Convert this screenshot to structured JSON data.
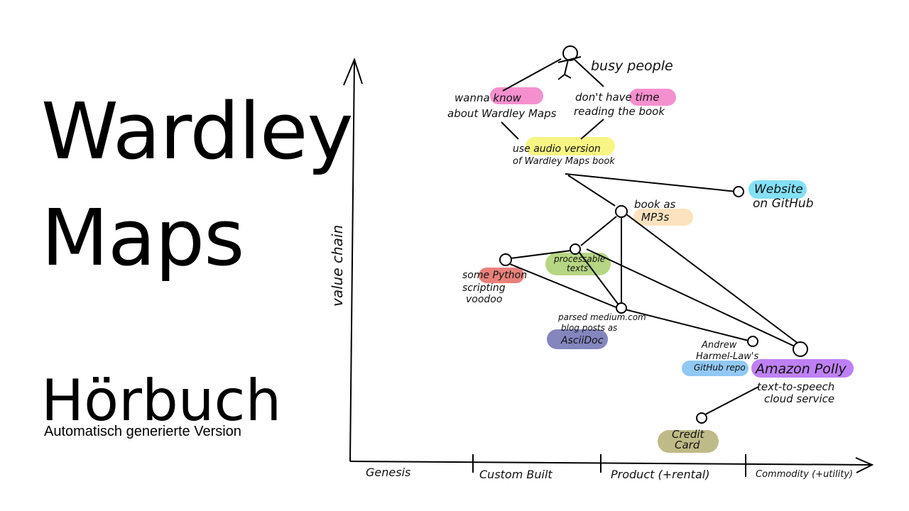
{
  "title": {
    "line1": "Wardley",
    "line2": "Maps"
  },
  "subtitle": "Hörbuch",
  "caption": "Automatisch generierte Version",
  "axes": {
    "y_label": "value chain",
    "x_stages": [
      "Genesis",
      "Custom Built",
      "Product (+rental)",
      "Commodity (+utility)"
    ]
  },
  "actor": {
    "label": "busy people"
  },
  "needs": [
    {
      "line1": "wanna know",
      "line2": "about Wardley Maps",
      "highlight": "know",
      "color": "#f26bbd"
    },
    {
      "line1": "don't have time",
      "line2": "reading the book",
      "highlight": "time",
      "color": "#f26bbd"
    }
  ],
  "components": {
    "audio": {
      "line1": "use audio version",
      "line2": "of Wardley Maps book",
      "color": "#f4f25a"
    },
    "website": {
      "line1": "Website",
      "line2": "on GitHub",
      "color": "#5ad6f2"
    },
    "mp3": {
      "line1": "book as",
      "line2": "MP3s",
      "color": "#fbd8a8"
    },
    "texts": {
      "line1": "processable",
      "line2": "texts",
      "color": "#9dc85a"
    },
    "python": {
      "line1": "some Python",
      "line2": "scripting",
      "line3": "voodoo",
      "color": "#e0574f"
    },
    "asciidoc": {
      "line1": "parsed medium.com",
      "line2": "blog posts as",
      "line3": "AsciiDoc",
      "color": "#5b5ea8"
    },
    "repo": {
      "line1": "Andrew",
      "line2": "Harmel-Law's",
      "line3": "GitHub repo",
      "color": "#6cb5f0"
    },
    "polly": {
      "line1": "Amazon Polly",
      "line2": "text-to-speech",
      "line3": "cloud service",
      "color": "#a855f0"
    },
    "credit": {
      "line1": "Credit",
      "line2": "Card",
      "color": "#a9a460"
    }
  }
}
